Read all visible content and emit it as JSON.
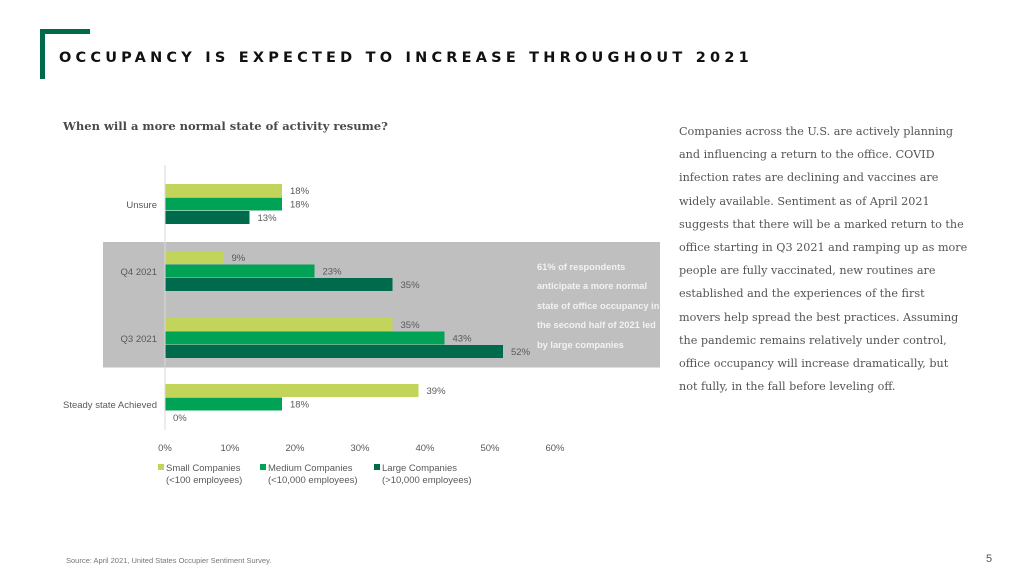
{
  "header": {
    "title": "OCCUPANCY IS EXPECTED TO INCREASE THROUGHOUT 2021"
  },
  "colors": {
    "accent": "#006a4d",
    "highlight_band": "#bfbfbf",
    "small": "#c2d55a",
    "medium": "#00a355",
    "large": "#006a4d"
  },
  "chart_data": {
    "type": "bar",
    "orientation": "horizontal",
    "title": "When will a more normal state of activity resume?",
    "xlabel": "",
    "ylabel": "",
    "xlim": [
      0,
      60
    ],
    "x_ticks": [
      "0%",
      "10%",
      "20%",
      "30%",
      "40%",
      "50%",
      "60%"
    ],
    "grid": false,
    "legend_position": "bottom",
    "categories": [
      "Unsure",
      "Q4 2021",
      "Q3 2021",
      "Steady state Achieved"
    ],
    "series": [
      {
        "name": "Small Companies",
        "sub": "(<100 employees)",
        "values": [
          18,
          9,
          35,
          39
        ],
        "labels": [
          "18%",
          "9%",
          "35%",
          "39%"
        ]
      },
      {
        "name": "Medium Companies",
        "sub": "(<10,000 employees)",
        "values": [
          18,
          23,
          43,
          18
        ],
        "labels": [
          "18%",
          "23%",
          "43%",
          "18%"
        ]
      },
      {
        "name": "Large Companies",
        "sub": "(>10,000 employees)",
        "values": [
          13,
          35,
          52,
          0
        ],
        "labels": [
          "13%",
          "35%",
          "52%",
          "0%"
        ]
      }
    ],
    "highlighted_categories": [
      "Q4 2021",
      "Q3 2021"
    ],
    "annotation": "61% of respondents anticipate a more normal state of office occupancy in the second half of 2021 led by large companies"
  },
  "body_text": "Companies across the U.S. are actively planning and influencing a return to the office. COVID infection rates are declining and vaccines are widely available. Sentiment as of April 2021 suggests that there will be a marked return to the office starting in Q3 2021 and ramping up as more people are fully vaccinated, new routines are established and the experiences of the first movers help spread the best practices. Assuming the pandemic remains relatively under control, office occupancy will increase dramatically, but not fully, in the fall before leveling off.",
  "footer": {
    "source": "Source: April 2021, United States Occupier Sentiment Survey.",
    "page_number": "5"
  }
}
